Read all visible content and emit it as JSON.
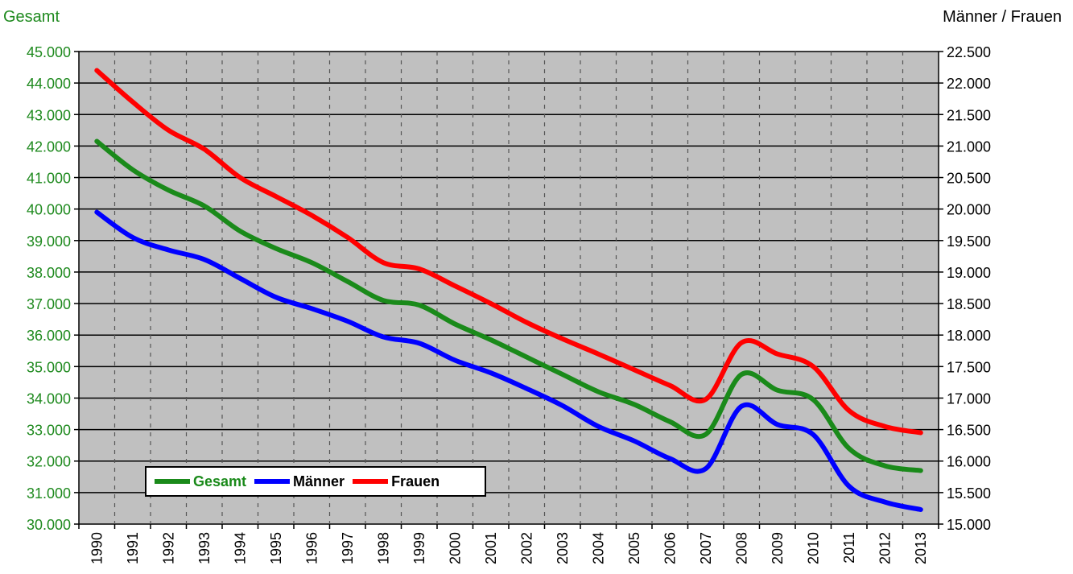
{
  "axis_titles": {
    "left": "Gesamt",
    "right": "Männer / Frauen"
  },
  "chart_data": {
    "type": "line",
    "x": [
      "1990",
      "1991",
      "1992",
      "1993",
      "1994",
      "1995",
      "1996",
      "1997",
      "1998",
      "1999",
      "2000",
      "2001",
      "2002",
      "2003",
      "2004",
      "2005",
      "2006",
      "2007",
      "2008",
      "2009",
      "2010",
      "2011",
      "2012",
      "2013"
    ],
    "series": [
      {
        "name": "Gesamt",
        "axis": "left",
        "color": "#1a8a1a",
        "values": [
          42150,
          41250,
          40600,
          40100,
          39300,
          38750,
          38300,
          37700,
          37100,
          36950,
          36350,
          35850,
          35300,
          34750,
          34200,
          33800,
          33250,
          32850,
          34750,
          34250,
          33950,
          32400,
          31850,
          31700
        ]
      },
      {
        "name": "Männer",
        "axis": "right",
        "color": "#0000ff",
        "values": [
          19950,
          19550,
          19350,
          19200,
          18900,
          18600,
          18420,
          18220,
          17970,
          17870,
          17600,
          17400,
          17150,
          16880,
          16550,
          16320,
          16040,
          15880,
          16870,
          16580,
          16420,
          15600,
          15350,
          15230
        ]
      },
      {
        "name": "Frauen",
        "axis": "right",
        "color": "#ff0000",
        "values": [
          22200,
          21700,
          21250,
          20950,
          20500,
          20200,
          19900,
          19550,
          19150,
          19050,
          18780,
          18500,
          18200,
          17940,
          17700,
          17450,
          17200,
          16980,
          17880,
          17700,
          17500,
          16800,
          16550,
          16450
        ]
      }
    ],
    "y_left": {
      "min": 30000,
      "max": 45000,
      "step": 1000,
      "ticks": [
        "30.000",
        "31.000",
        "32.000",
        "33.000",
        "34.000",
        "35.000",
        "36.000",
        "37.000",
        "38.000",
        "39.000",
        "40.000",
        "41.000",
        "42.000",
        "43.000",
        "44.000",
        "45.000"
      ]
    },
    "y_right": {
      "min": 15000,
      "max": 22500,
      "step": 500,
      "ticks": [
        "15.000",
        "15.500",
        "16.000",
        "16.500",
        "17.000",
        "17.500",
        "18.000",
        "18.500",
        "19.000",
        "19.500",
        "20.000",
        "20.500",
        "21.000",
        "21.500",
        "22.000",
        "22.500"
      ]
    },
    "grid": true,
    "legend": "bottom-left inside plot",
    "plot_background": "#c0c0c0"
  }
}
